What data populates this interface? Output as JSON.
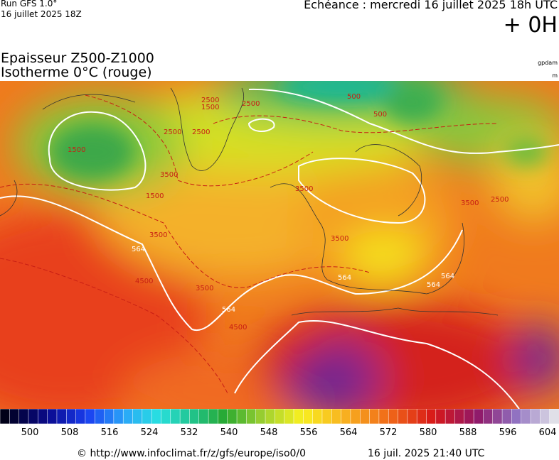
{
  "header": {
    "run": "Run GFS 1.0°",
    "date": "16 juillet 2025 18Z",
    "echeance": "Echéance : mercredi 16 juillet 2025 18h UTC",
    "offset": "+ 0H",
    "title1": "Epaisseur Z500-Z1000",
    "title2": "Isotherme 0°C (rouge)",
    "unit1": "gpdam",
    "unit2": "m"
  },
  "map": {
    "labels": [
      "1500",
      "2500",
      "2500",
      "2500",
      "2500",
      "3500",
      "3500",
      "3500",
      "3500",
      "3500",
      "564",
      "564",
      "564",
      "4500",
      "4500",
      "1500",
      "500",
      "500",
      "1500",
      "2500",
      "3500",
      "564",
      "564"
    ]
  },
  "legend": {
    "labels": [
      500,
      508,
      516,
      524,
      532,
      540,
      548,
      556,
      564,
      572,
      580,
      588,
      596,
      604
    ]
  },
  "footer": {
    "url": "© http://www.infoclimat.fr/z/gfs/europe/iso0/0",
    "generated": "16 juil. 2025 21:40 UTC"
  }
}
